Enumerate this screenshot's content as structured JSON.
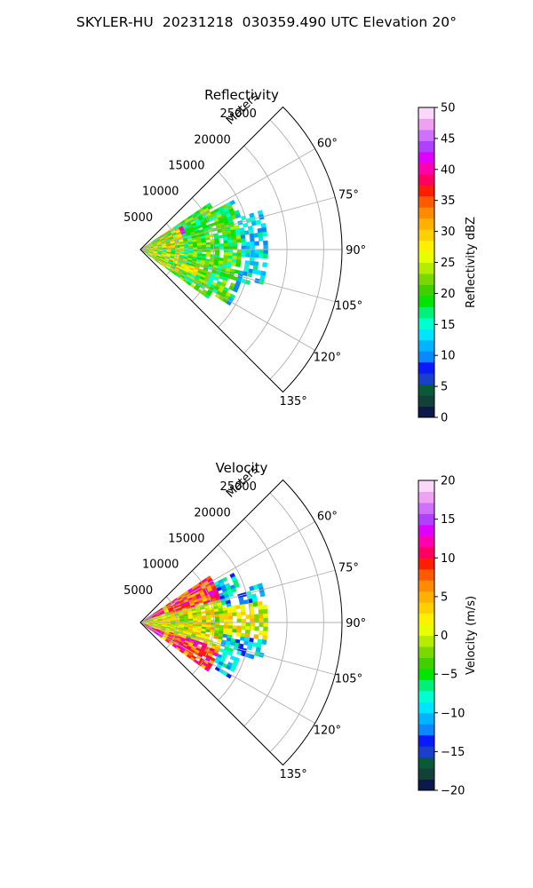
{
  "figure": {
    "title": "SKYLER-HU  20231218  030359.490 UTC Elevation 20°"
  },
  "chart_data": [
    {
      "type": "heatmap",
      "projection": "polar sector (PPI)",
      "title": "Reflectivity",
      "radial_axis_label": "Meters",
      "radial_ticks": [
        5000,
        10000,
        15000,
        20000,
        25000
      ],
      "radial_tick_labels": [
        "5000",
        "10000",
        "15000",
        "20000",
        "25000"
      ],
      "r_range": [
        0,
        27500
      ],
      "data_max_range": 17000,
      "angle_range_deg": [
        45,
        135
      ],
      "angle_ticks": [
        60,
        75,
        90,
        105,
        120,
        135
      ],
      "angle_tick_labels": [
        "60°",
        "75°",
        "90°",
        "105°",
        "120°",
        "135°"
      ],
      "grid": true,
      "colorbar": {
        "label": "Reflectivity dBZ",
        "range": [
          0,
          50
        ],
        "ticks": [
          0,
          5,
          10,
          15,
          20,
          25,
          30,
          35,
          40,
          45,
          50
        ],
        "tick_labels": [
          "0",
          "5",
          "10",
          "15",
          "20",
          "25",
          "30",
          "35",
          "40",
          "45",
          "50"
        ],
        "colormap": "NWSRef",
        "colors": [
          "#0b1a4a",
          "#14403a",
          "#0a5a3a",
          "#1a3fc8",
          "#0a1aff",
          "#0a88ff",
          "#00b4ff",
          "#00e5ff",
          "#00ffd0",
          "#00f07a",
          "#00e400",
          "#40d000",
          "#7ad800",
          "#b4ec00",
          "#e8ff00",
          "#fff000",
          "#ffd000",
          "#ffb000",
          "#ff8c00",
          "#ff5a00",
          "#ff1e00",
          "#ff0060",
          "#ff00b0",
          "#e000ff",
          "#b040ff",
          "#d070ff",
          "#f0a0f0",
          "#fbd8fb"
        ]
      },
      "regions": [
        {
          "desc": "near-range mix",
          "r": [
            0,
            5500
          ],
          "az": [
            58,
            122
          ],
          "dbz": 27
        },
        {
          "desc": "magenta band",
          "r": [
            4000,
            6600
          ],
          "az": [
            61,
            70
          ],
          "dbz": 42
        },
        {
          "desc": "body",
          "r": [
            5500,
            13500
          ],
          "az": [
            58,
            125
          ],
          "dbz": 19
        },
        {
          "desc": "outer sparse edge",
          "r": [
            13500,
            17000
          ],
          "az": [
            68,
            108
          ],
          "dbz": 12
        }
      ]
    },
    {
      "type": "heatmap",
      "projection": "polar sector (PPI)",
      "title": "Velocity",
      "radial_axis_label": "Meters",
      "radial_ticks": [
        5000,
        10000,
        15000,
        20000,
        25000
      ],
      "radial_tick_labels": [
        "5000",
        "10000",
        "15000",
        "20000",
        "25000"
      ],
      "r_range": [
        0,
        27500
      ],
      "data_max_range": 17000,
      "angle_range_deg": [
        45,
        135
      ],
      "angle_ticks": [
        60,
        75,
        90,
        105,
        120,
        135
      ],
      "angle_tick_labels": [
        "60°",
        "75°",
        "90°",
        "105°",
        "120°",
        "135°"
      ],
      "grid": true,
      "colorbar": {
        "label": "Velocity (m/s)",
        "range": [
          -20,
          20
        ],
        "ticks": [
          -20,
          -15,
          -10,
          -5,
          0,
          5,
          10,
          15,
          20
        ],
        "tick_labels": [
          "−20",
          "−15",
          "−10",
          "−5",
          "0",
          "5",
          "10",
          "15",
          "20"
        ],
        "colormap": "NWSVel",
        "colors": [
          "#0b1a4a",
          "#14403a",
          "#0a5a3a",
          "#1a3fc8",
          "#0a1aff",
          "#0a88ff",
          "#00b4ff",
          "#00e5ff",
          "#00ffd0",
          "#00f07a",
          "#00e400",
          "#40d000",
          "#7ad800",
          "#b4ec00",
          "#e8ff00",
          "#fff000",
          "#ffd000",
          "#ffb000",
          "#ff8c00",
          "#ff5a00",
          "#ff1e00",
          "#ff0060",
          "#ff00b0",
          "#e000ff",
          "#b040ff",
          "#d070ff",
          "#f0a0f0",
          "#fbd8fb"
        ]
      },
      "regions": [
        {
          "desc": "inbound upper lobe",
          "r": [
            4000,
            11000
          ],
          "az": [
            58,
            75
          ],
          "vel": 10
        },
        {
          "desc": "near-zero core",
          "r": [
            0,
            11000
          ],
          "az": [
            75,
            105
          ],
          "vel": 1
        },
        {
          "desc": "inbound lower lobe",
          "r": [
            4000,
            11000
          ],
          "az": [
            108,
            125
          ],
          "vel": 10
        },
        {
          "desc": "outbound outer",
          "r": [
            11000,
            17000
          ],
          "az": [
            60,
            122
          ],
          "vel": -11
        }
      ]
    }
  ]
}
